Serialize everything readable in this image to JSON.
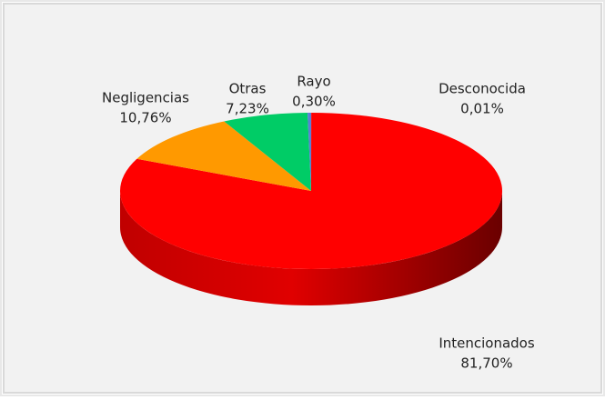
{
  "chart_data": {
    "type": "pie3d",
    "categories": [
      "Desconocida",
      "Intencionados",
      "Negligencias",
      "Otras",
      "Rayo"
    ],
    "values": [
      0.01,
      81.7,
      10.76,
      7.23,
      0.3
    ],
    "value_labels": [
      "0,01%",
      "81,70%",
      "10,76%",
      "7,23%",
      "0,30%"
    ],
    "colors": [
      "#7f3f98",
      "#ff0000",
      "#ff9900",
      "#00cc66",
      "#5b7fd6"
    ]
  }
}
